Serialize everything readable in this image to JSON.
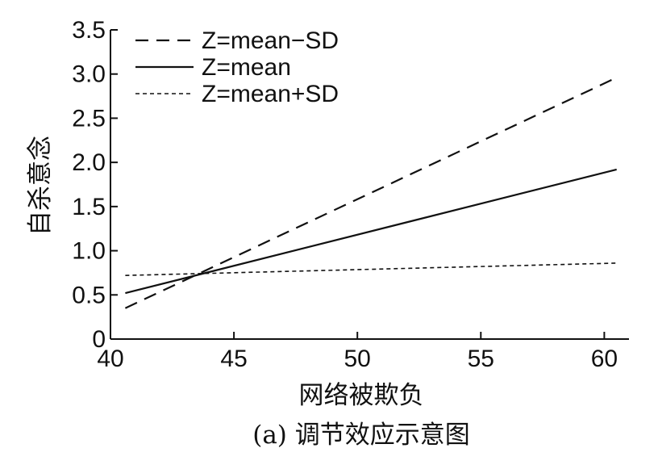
{
  "chart_data": {
    "type": "line",
    "title": "",
    "caption": "(a) 调节效应示意图",
    "xlabel": "网络被欺负",
    "ylabel": "自杀意念",
    "xlim": [
      40,
      61
    ],
    "ylim": [
      0,
      3.5
    ],
    "xticks": [
      "40",
      "45",
      "50",
      "55",
      "60"
    ],
    "xtick_values": [
      40,
      45,
      50,
      55,
      60
    ],
    "yticks": [
      "0",
      "0.5",
      "1.0",
      "1.5",
      "2.0",
      "2.5",
      "3.0",
      "3.5"
    ],
    "ytick_values": [
      0,
      0.5,
      1.0,
      1.5,
      2.0,
      2.5,
      3.0,
      3.5
    ],
    "grid": false,
    "legend_position": "top-left",
    "series": [
      {
        "name": "Z=mean−SD",
        "style": "long-dash",
        "color": "#111111",
        "x": [
          40.6,
          60.5
        ],
        "y": [
          0.35,
          2.96
        ]
      },
      {
        "name": "Z=mean",
        "style": "solid",
        "color": "#111111",
        "x": [
          40.6,
          60.5
        ],
        "y": [
          0.52,
          1.92
        ]
      },
      {
        "name": "Z=mean+SD",
        "style": "short-dash",
        "color": "#111111",
        "x": [
          40.6,
          60.5
        ],
        "y": [
          0.72,
          0.86
        ]
      }
    ]
  }
}
